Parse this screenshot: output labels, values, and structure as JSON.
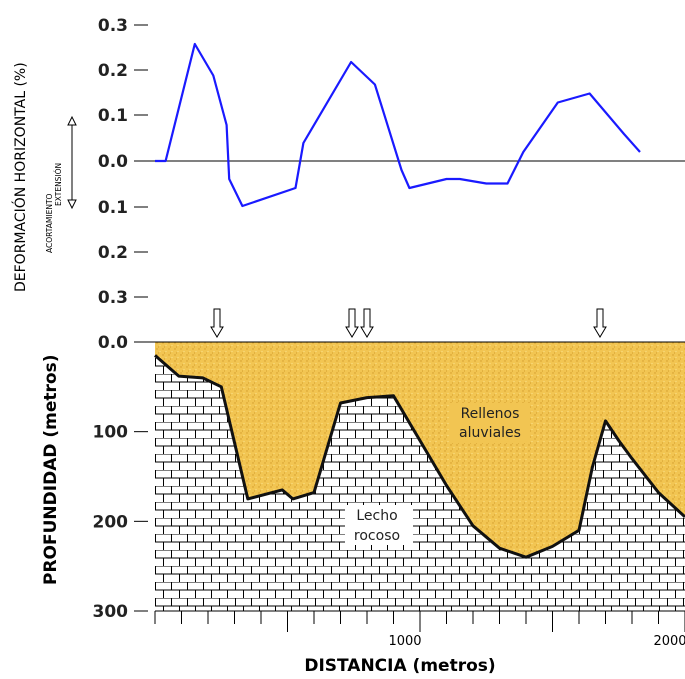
{
  "top_chart": {
    "ylabel": "DEFORMACIÓN HORIZONTAL (%)",
    "direction_labels": {
      "up": "EXTENSIÓN",
      "down": "ACORTAMIENTO"
    },
    "y_tick_labels": [
      "0.3",
      "0.2",
      "0.1",
      "0.0",
      "0.1",
      "0.2",
      "0.3"
    ],
    "line_color": "#1a1aff"
  },
  "bottom_chart": {
    "ylabel": "PROFUNDIDAD (metros)",
    "xlabel": "DISTANCIA (metros)",
    "y_tick_labels": [
      "0.0",
      "100",
      "200",
      "300"
    ],
    "x_tick_labels": [
      "1000",
      "2000"
    ],
    "regions": {
      "fill_line1": "Rellenos",
      "fill_line2": "aluviales",
      "rock_line1": "Lecho",
      "rock_line2": "rocoso"
    },
    "colors": {
      "alluvium": "#f2c552",
      "rock_line": "#000000"
    }
  },
  "chart_data": {
    "type": "line",
    "x": [
      0,
      40,
      150,
      220,
      270,
      280,
      330,
      530,
      560,
      740,
      830,
      930,
      960,
      1100,
      1150,
      1250,
      1300,
      1330,
      1390,
      1520,
      1640,
      1770,
      1830
    ],
    "series": [
      {
        "values": [
          0.0,
          0.0,
          0.26,
          0.19,
          0.08,
          -0.04,
          -0.1,
          -0.06,
          0.04,
          0.22,
          0.17,
          -0.02,
          -0.06,
          -0.04,
          -0.04,
          -0.05,
          -0.05,
          -0.05,
          0.02,
          0.13,
          0.15,
          0.06,
          0.02
        ]
      }
    ],
    "ylim": [
      -0.3,
      0.3
    ],
    "xlim": [
      0,
      2000
    ],
    "depth_profile": {
      "x": [
        0,
        90,
        180,
        250,
        350,
        480,
        520,
        600,
        700,
        800,
        900,
        1000,
        1100,
        1200,
        1300,
        1400,
        1500,
        1600,
        1650,
        1700,
        1750,
        1800,
        1900,
        2000
      ],
      "depth": [
        15,
        38,
        40,
        50,
        175,
        165,
        175,
        168,
        68,
        62,
        60,
        110,
        160,
        205,
        230,
        240,
        228,
        210,
        140,
        88,
        110,
        130,
        168,
        195
      ],
      "ylim": [
        0,
        300
      ]
    }
  }
}
